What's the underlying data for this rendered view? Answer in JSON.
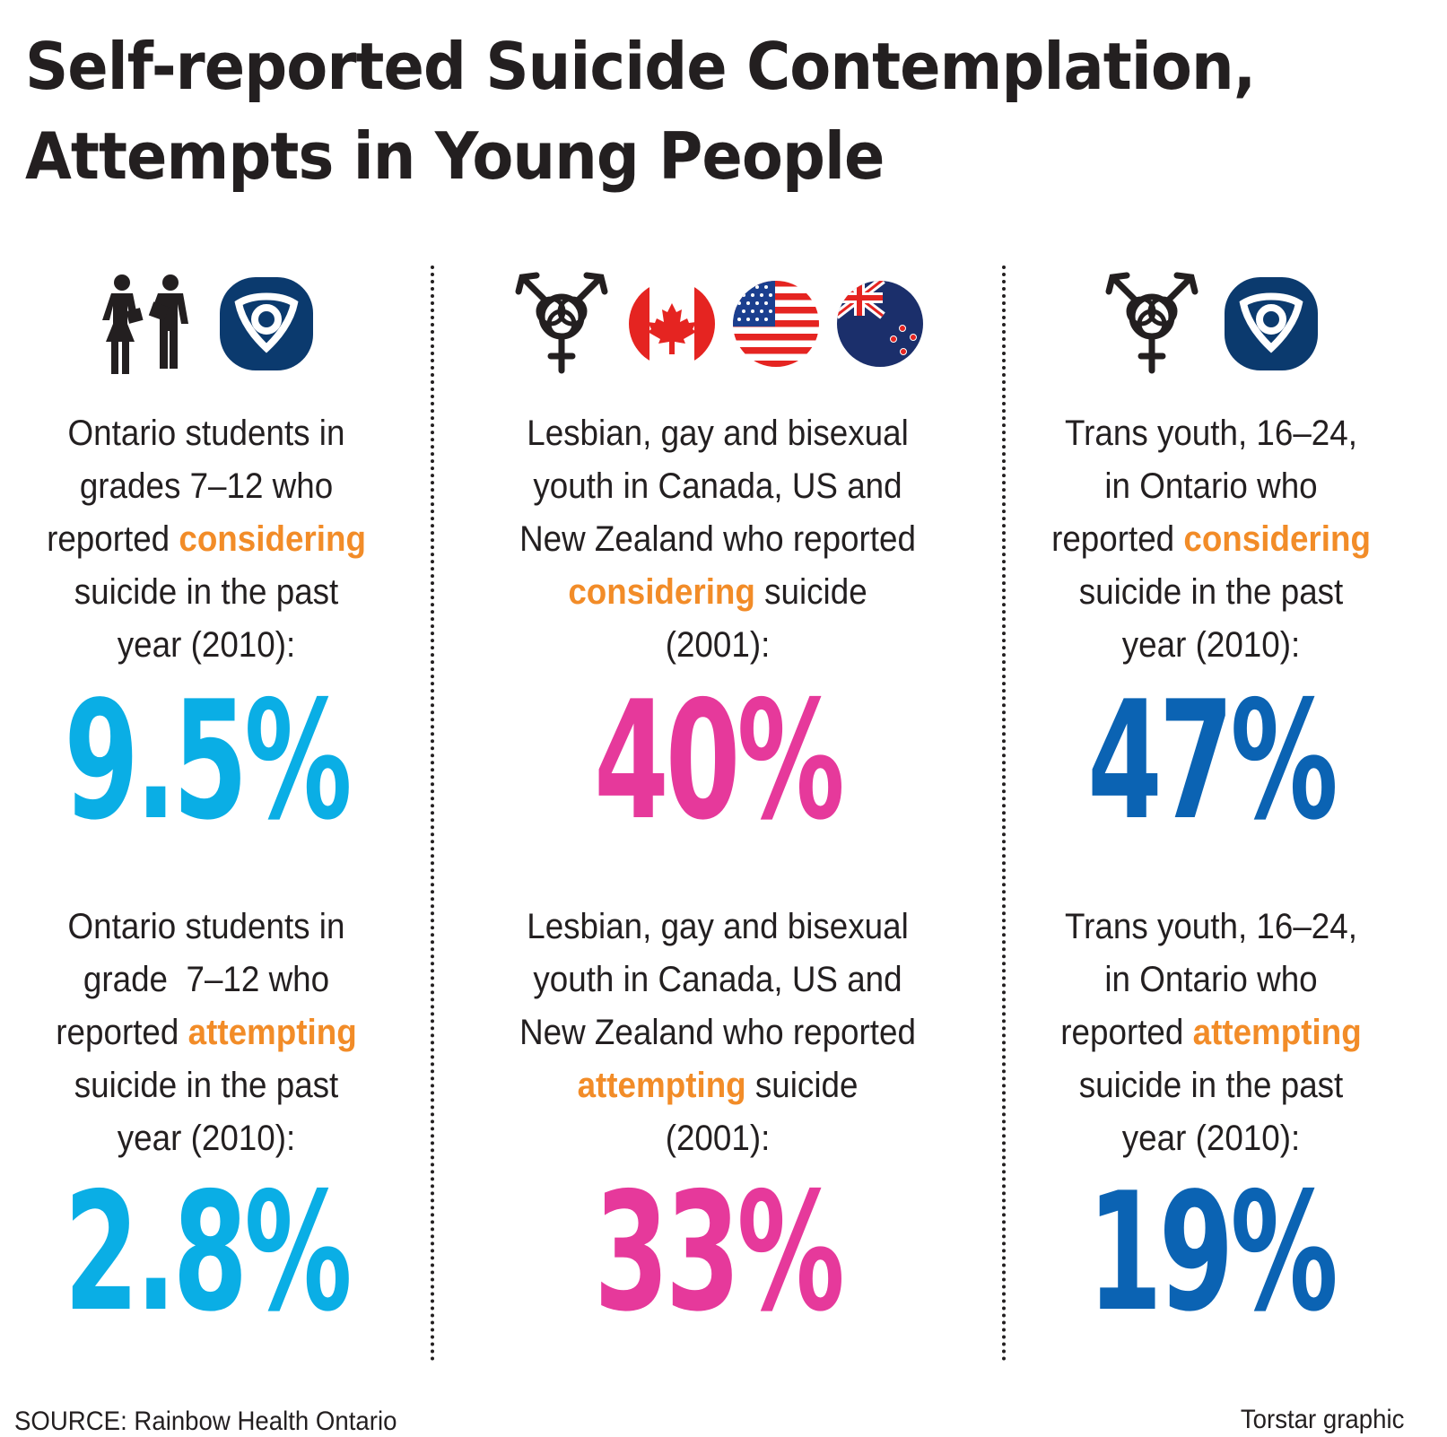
{
  "title": {
    "line1": "Self-reported Suicide Contemplation,",
    "line2": "Attempts in Young People"
  },
  "colors": {
    "highlight": "#f28c28",
    "light_blue": "#0aaee5",
    "magenta": "#e6399b",
    "dark_blue": "#0b63b3",
    "ontario_navy": "#0b3a6e"
  },
  "columns": [
    {
      "icons": [
        "students-icon",
        "ontario-logo-icon"
      ],
      "considering": {
        "lines": [
          "Ontario students in",
          "grades 7–12 who"
        ],
        "pre": "reported ",
        "highlight": "considering",
        "post_lines": [
          "suicide in the past",
          "year (2010):"
        ],
        "value": "9.5%"
      },
      "attempting": {
        "lines": [
          "Ontario students in",
          "grade  7–12 who"
        ],
        "pre": "reported ",
        "highlight": "attempting",
        "post_lines": [
          "suicide in the past",
          "year (2010):"
        ],
        "value": "2.8%"
      }
    },
    {
      "icons": [
        "gender-symbol-icon",
        "canada-flag-icon",
        "usa-flag-icon",
        "new-zealand-flag-icon"
      ],
      "considering": {
        "lines": [
          "Lesbian, gay and bisexual",
          "youth in Canada, US and",
          "New Zealand who reported"
        ],
        "highlight": "considering",
        "post": " suicide",
        "last": "(2001):",
        "value": "40%"
      },
      "attempting": {
        "lines": [
          "Lesbian, gay and bisexual",
          "youth in Canada, US and",
          "New Zealand who reported"
        ],
        "highlight": "attempting",
        "post": " suicide",
        "last": "(2001):",
        "value": "33%"
      }
    },
    {
      "icons": [
        "gender-symbol-icon",
        "ontario-logo-icon"
      ],
      "considering": {
        "lines": [
          "Trans youth, 16–24,",
          "in Ontario who"
        ],
        "pre": "reported ",
        "highlight": "considering",
        "post_lines": [
          "suicide in the past",
          "year (2010):"
        ],
        "value": "47%"
      },
      "attempting": {
        "lines": [
          "Trans youth, 16–24,",
          "in Ontario who"
        ],
        "pre": "reported ",
        "highlight": "attempting",
        "post_lines": [
          "suicide in the past",
          "year (2010):"
        ],
        "value": "19%"
      }
    }
  ],
  "footer": {
    "source": "SOURCE: Rainbow Health Ontario",
    "credit": "Torstar graphic"
  }
}
